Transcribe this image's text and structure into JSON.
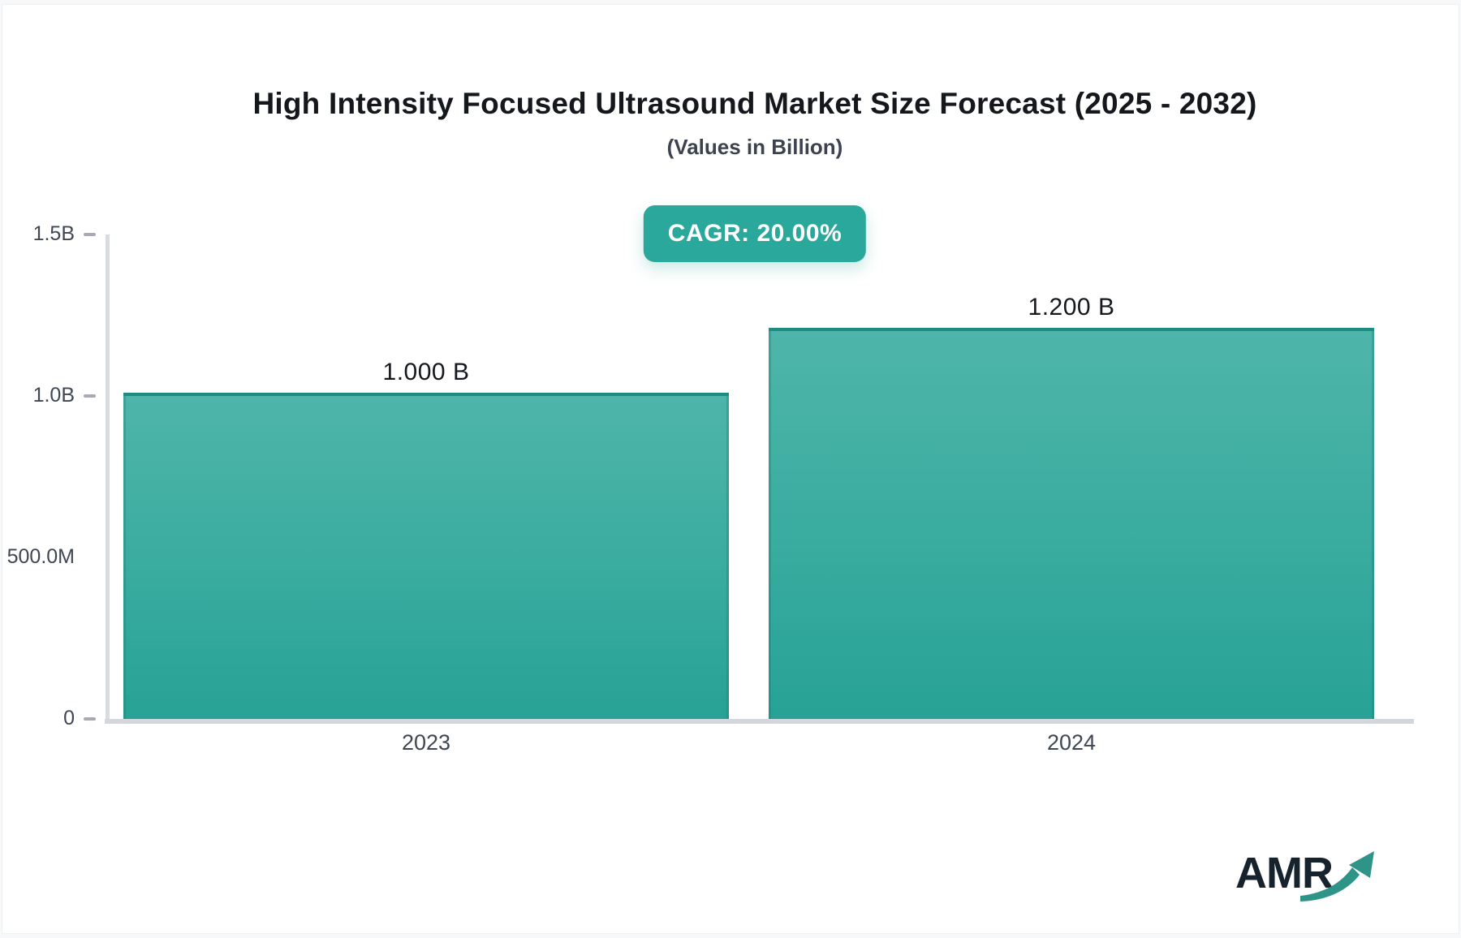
{
  "page": {
    "title": "High Intensity Focused Ultrasound Market Size Forecast (2025 - 2032)",
    "subtitle": "(Values in Billion)",
    "cagr_badge": "CAGR: 20.00%",
    "logo_text": "AMR"
  },
  "colors": {
    "accent_teal": "#2BA89C",
    "bar_gradient_top": "#4FB5AA",
    "bar_gradient_bottom": "#28A296",
    "bar_border_top": "#1F8C81",
    "axis_line": "#D8DBDF",
    "tick_dash": "#A6ABB3",
    "title_text": "#14171B",
    "axis_label_text": "#3E4752",
    "logo_navy": "#16222C",
    "logo_arrow_teal": "#2F9488"
  },
  "chart_data": {
    "type": "bar",
    "title": "High Intensity Focused Ultrasound Market Size Forecast (2025 - 2032)",
    "subtitle": "(Values in Billion)",
    "cagr": "20.00%",
    "categories": [
      "2023",
      "2024"
    ],
    "values": [
      1000000000,
      1200000000
    ],
    "value_labels": [
      "1.000 B",
      "1.200 B"
    ],
    "unit": "Billion",
    "xlabel": "",
    "ylabel": "",
    "ylim": [
      0,
      1500000000
    ],
    "grid": false,
    "legend": false,
    "yticks": [
      {
        "label": "1.5B",
        "value": 1500000000,
        "dash": true
      },
      {
        "label": "1.0B",
        "value": 1000000000,
        "dash": true
      },
      {
        "label": "500.0M",
        "value": 500000000,
        "dash": false
      },
      {
        "label": "0",
        "value": 0,
        "dash": true
      }
    ]
  }
}
